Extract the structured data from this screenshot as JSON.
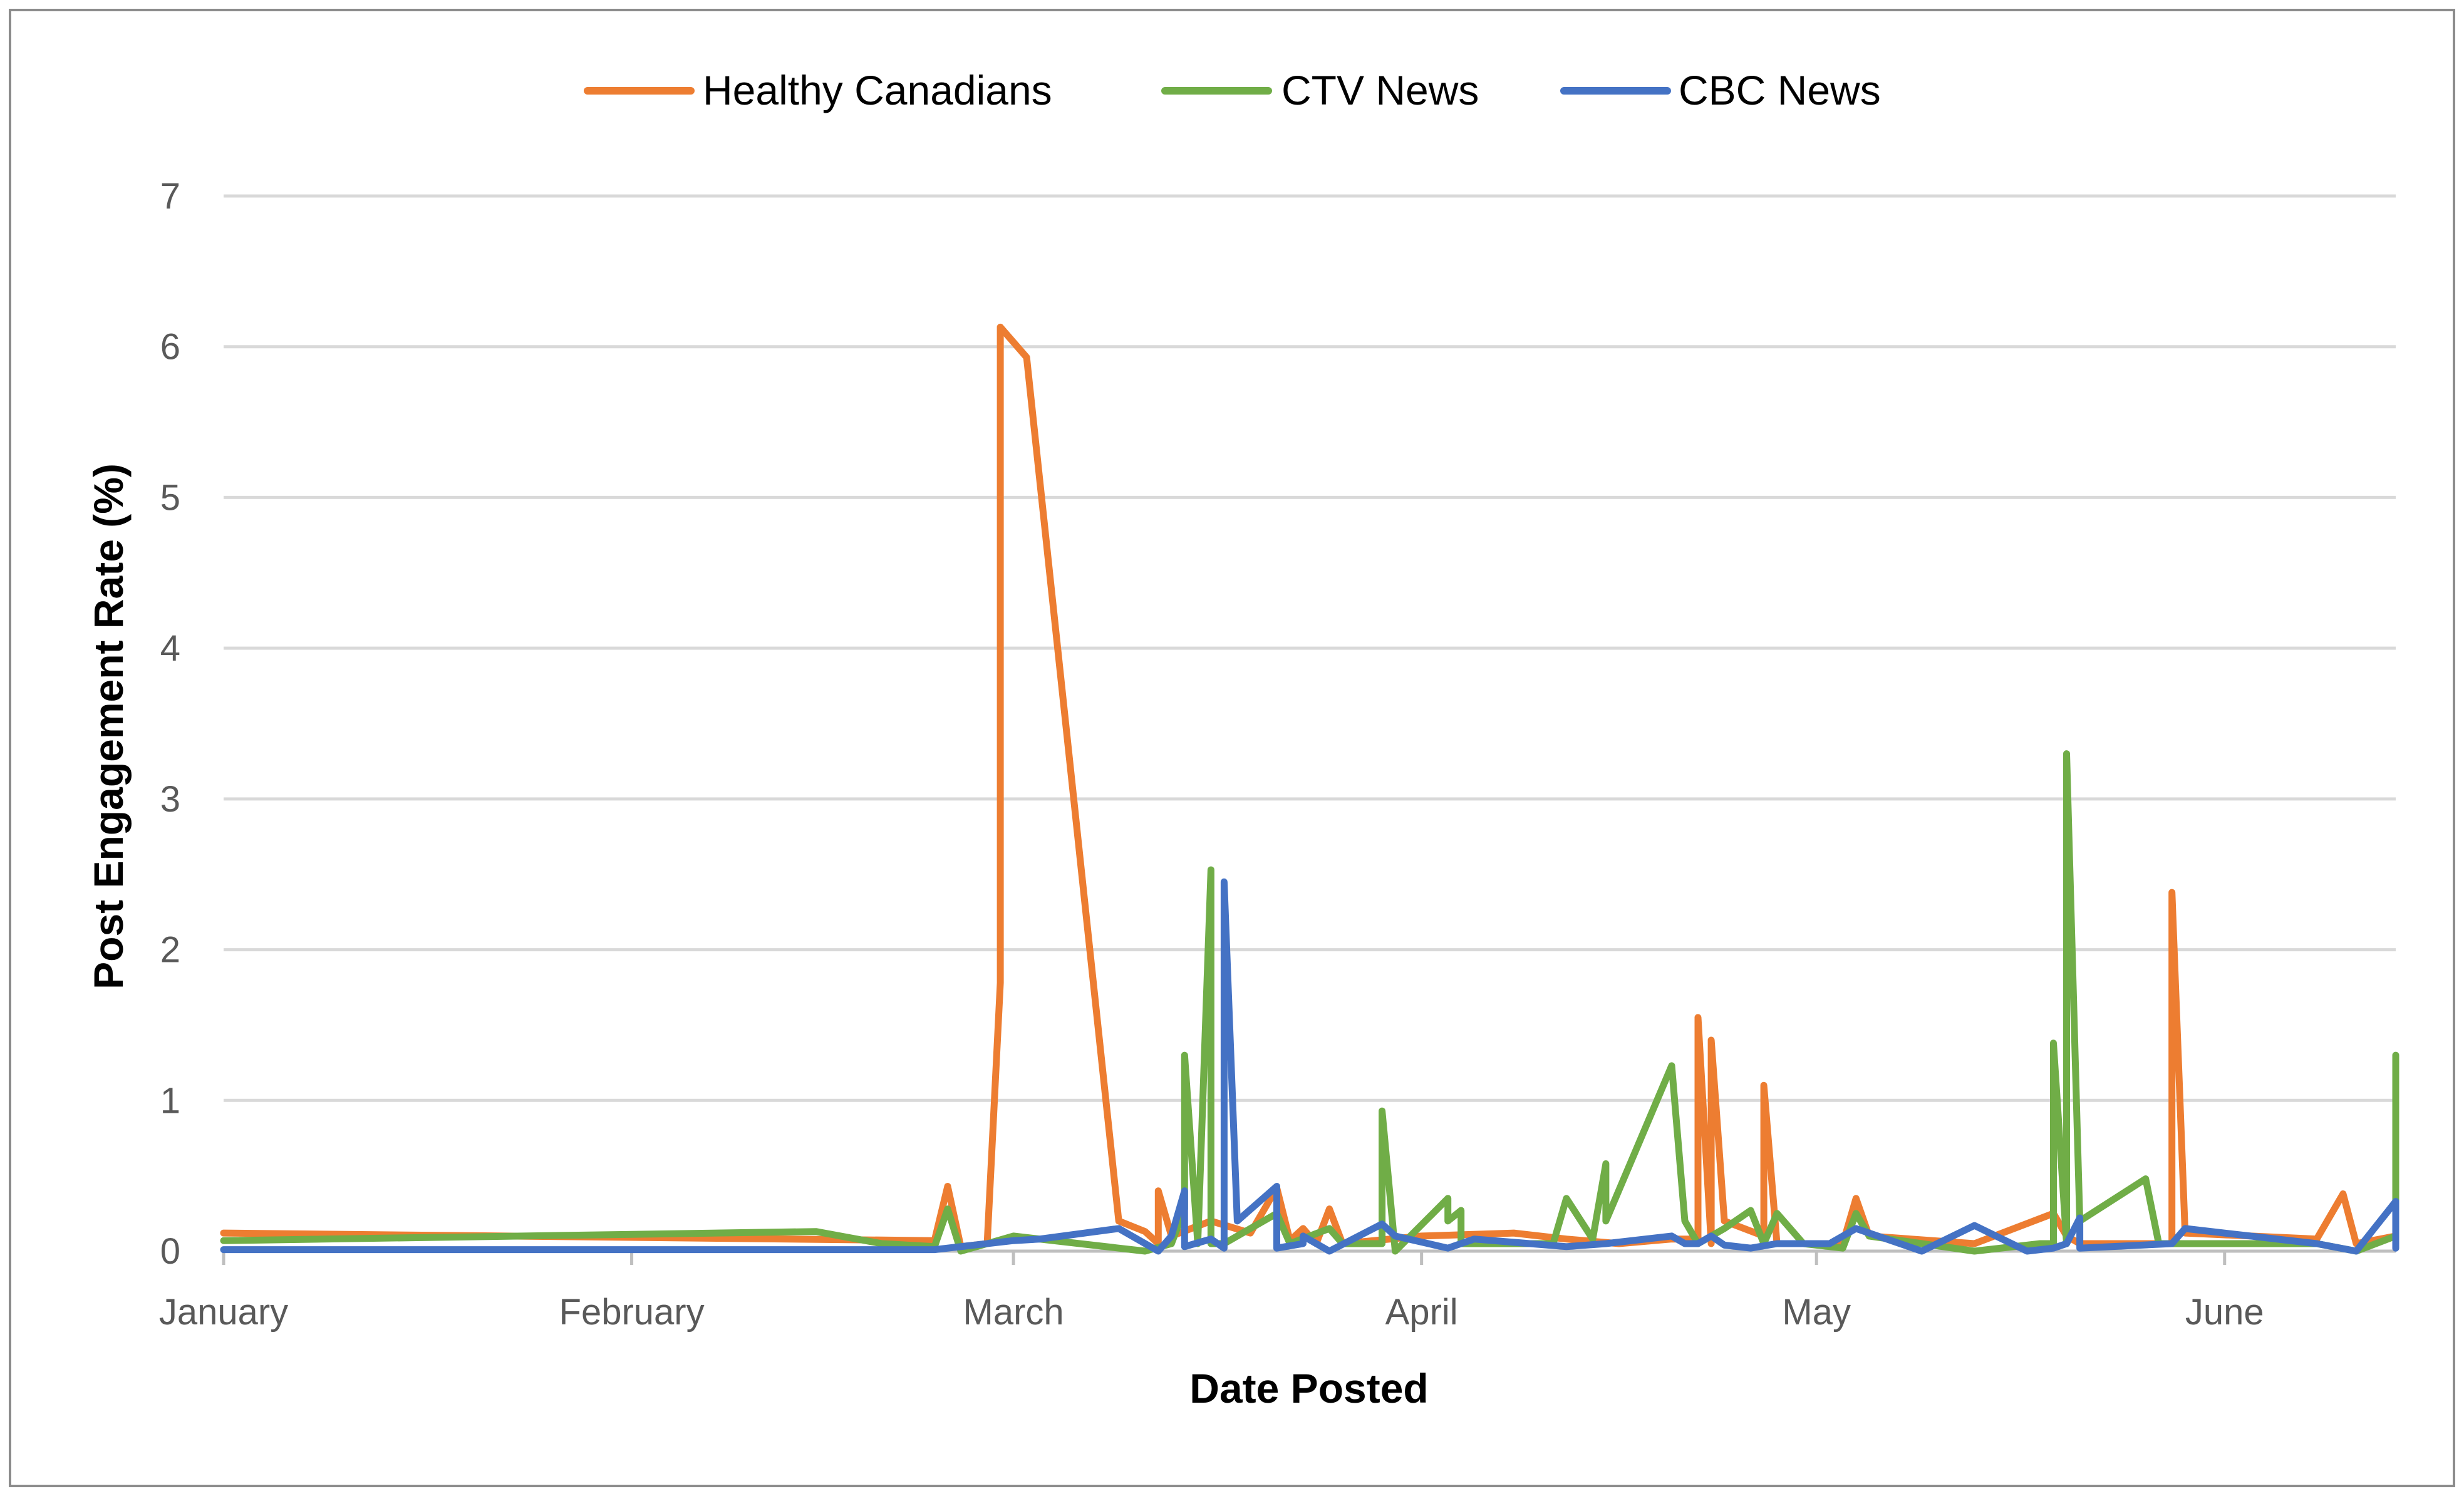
{
  "chart_data": {
    "type": "line",
    "title": "",
    "xlabel": "Date Posted",
    "ylabel": "Post Engagement Rate (%)",
    "x_axis_type": "date",
    "x_tick_labels": [
      "January",
      "February",
      "March",
      "April",
      "May",
      "June"
    ],
    "x_tick_dates": [
      "2020-01-01",
      "2020-02-01",
      "2020-03-01",
      "2020-04-01",
      "2020-05-01",
      "2020-06-01"
    ],
    "xlim": [
      "2020-01-01",
      "2020-06-14"
    ],
    "ylim": [
      0,
      7
    ],
    "y_ticks": [
      0,
      1,
      2,
      3,
      4,
      5,
      6,
      7
    ],
    "grid": "horizontal",
    "legend_position": "top-center",
    "series": [
      {
        "name": "Healthy Canadians",
        "color": "#ED7D31",
        "points": [
          [
            "2020-01-01",
            0.12
          ],
          [
            "2020-02-24",
            0.07
          ],
          [
            "2020-02-25",
            0.43
          ],
          [
            "2020-02-26",
            0.03
          ],
          [
            "2020-02-28",
            0.05
          ],
          [
            "2020-02-29",
            1.78
          ],
          [
            "2020-02-29",
            6.13
          ],
          [
            "2020-03-02",
            5.93
          ],
          [
            "2020-03-09",
            0.2
          ],
          [
            "2020-03-11",
            0.13
          ],
          [
            "2020-03-12",
            0.05
          ],
          [
            "2020-03-12",
            0.4
          ],
          [
            "2020-03-13",
            0.1
          ],
          [
            "2020-03-16",
            0.2
          ],
          [
            "2020-03-19",
            0.12
          ],
          [
            "2020-03-21",
            0.42
          ],
          [
            "2020-03-22",
            0.07
          ],
          [
            "2020-03-23",
            0.15
          ],
          [
            "2020-03-24",
            0.05
          ],
          [
            "2020-03-25",
            0.28
          ],
          [
            "2020-03-26",
            0.05
          ],
          [
            "2020-04-01",
            0.1
          ],
          [
            "2020-04-08",
            0.12
          ],
          [
            "2020-04-12",
            0.08
          ],
          [
            "2020-04-16",
            0.05
          ],
          [
            "2020-04-20",
            0.08
          ],
          [
            "2020-04-22",
            0.08
          ],
          [
            "2020-04-22",
            1.55
          ],
          [
            "2020-04-23",
            0.05
          ],
          [
            "2020-04-23",
            1.4
          ],
          [
            "2020-04-24",
            0.2
          ],
          [
            "2020-04-27",
            0.1
          ],
          [
            "2020-04-27",
            1.1
          ],
          [
            "2020-04-28",
            0.05
          ],
          [
            "2020-05-03",
            0.05
          ],
          [
            "2020-05-04",
            0.35
          ],
          [
            "2020-05-05",
            0.1
          ],
          [
            "2020-05-13",
            0.05
          ],
          [
            "2020-05-19",
            0.25
          ],
          [
            "2020-05-20",
            0.1
          ],
          [
            "2020-05-21",
            0.05
          ],
          [
            "2020-05-28",
            0.05
          ],
          [
            "2020-05-28",
            2.38
          ],
          [
            "2020-05-29",
            0.12
          ],
          [
            "2020-06-08",
            0.08
          ],
          [
            "2020-06-10",
            0.38
          ],
          [
            "2020-06-11",
            0.05
          ],
          [
            "2020-06-14",
            0.1
          ]
        ]
      },
      {
        "name": "CTV News",
        "color": "#70AD47",
        "points": [
          [
            "2020-01-01",
            0.07
          ],
          [
            "2020-02-15",
            0.13
          ],
          [
            "2020-02-20",
            0.05
          ],
          [
            "2020-02-24",
            0.03
          ],
          [
            "2020-02-25",
            0.28
          ],
          [
            "2020-02-26",
            0.0
          ],
          [
            "2020-02-28",
            0.05
          ],
          [
            "2020-03-01",
            0.1
          ],
          [
            "2020-03-11",
            0.0
          ],
          [
            "2020-03-13",
            0.05
          ],
          [
            "2020-03-14",
            0.28
          ],
          [
            "2020-03-14",
            1.3
          ],
          [
            "2020-03-15",
            0.05
          ],
          [
            "2020-03-16",
            2.53
          ],
          [
            "2020-03-16",
            0.05
          ],
          [
            "2020-03-17",
            0.05
          ],
          [
            "2020-03-19",
            0.15
          ],
          [
            "2020-03-21",
            0.25
          ],
          [
            "2020-03-22",
            0.05
          ],
          [
            "2020-03-25",
            0.15
          ],
          [
            "2020-03-26",
            0.05
          ],
          [
            "2020-03-29",
            0.05
          ],
          [
            "2020-03-29",
            0.93
          ],
          [
            "2020-03-30",
            0.0
          ],
          [
            "2020-04-03",
            0.35
          ],
          [
            "2020-04-03",
            0.2
          ],
          [
            "2020-04-04",
            0.27
          ],
          [
            "2020-04-04",
            0.05
          ],
          [
            "2020-04-11",
            0.05
          ],
          [
            "2020-04-12",
            0.35
          ],
          [
            "2020-04-14",
            0.08
          ],
          [
            "2020-04-15",
            0.58
          ],
          [
            "2020-04-15",
            0.2
          ],
          [
            "2020-04-20",
            1.23
          ],
          [
            "2020-04-21",
            0.2
          ],
          [
            "2020-04-22",
            0.05
          ],
          [
            "2020-04-24",
            0.15
          ],
          [
            "2020-04-26",
            0.27
          ],
          [
            "2020-04-27",
            0.05
          ],
          [
            "2020-04-28",
            0.25
          ],
          [
            "2020-04-29",
            0.15
          ],
          [
            "2020-04-30",
            0.05
          ],
          [
            "2020-05-03",
            0.02
          ],
          [
            "2020-05-04",
            0.25
          ],
          [
            "2020-05-05",
            0.1
          ],
          [
            "2020-05-13",
            0.0
          ],
          [
            "2020-05-18",
            0.05
          ],
          [
            "2020-05-19",
            0.05
          ],
          [
            "2020-05-19",
            1.38
          ],
          [
            "2020-05-20",
            0.05
          ],
          [
            "2020-05-20",
            3.3
          ],
          [
            "2020-05-21",
            0.2
          ],
          [
            "2020-05-26",
            0.48
          ],
          [
            "2020-05-27",
            0.05
          ],
          [
            "2020-06-08",
            0.05
          ],
          [
            "2020-06-11",
            0.0
          ],
          [
            "2020-06-14",
            0.1
          ],
          [
            "2020-06-14",
            1.3
          ]
        ]
      },
      {
        "name": "CBC News",
        "color": "#4472C4",
        "points": [
          [
            "2020-01-01",
            0.01
          ],
          [
            "2020-02-24",
            0.01
          ],
          [
            "2020-03-01",
            0.07
          ],
          [
            "2020-03-03",
            0.08
          ],
          [
            "2020-03-09",
            0.15
          ],
          [
            "2020-03-11",
            0.05
          ],
          [
            "2020-03-12",
            0.0
          ],
          [
            "2020-03-13",
            0.1
          ],
          [
            "2020-03-14",
            0.4
          ],
          [
            "2020-03-14",
            0.03
          ],
          [
            "2020-03-16",
            0.08
          ],
          [
            "2020-03-17",
            0.02
          ],
          [
            "2020-03-17",
            2.45
          ],
          [
            "2020-03-18",
            0.2
          ],
          [
            "2020-03-21",
            0.43
          ],
          [
            "2020-03-21",
            0.02
          ],
          [
            "2020-03-23",
            0.05
          ],
          [
            "2020-03-23",
            0.1
          ],
          [
            "2020-03-24",
            0.05
          ],
          [
            "2020-03-25",
            0.0
          ],
          [
            "2020-03-29",
            0.18
          ],
          [
            "2020-03-30",
            0.1
          ],
          [
            "2020-04-03",
            0.02
          ],
          [
            "2020-04-05",
            0.08
          ],
          [
            "2020-04-12",
            0.03
          ],
          [
            "2020-04-15",
            0.05
          ],
          [
            "2020-04-20",
            0.1
          ],
          [
            "2020-04-21",
            0.05
          ],
          [
            "2020-04-22",
            0.05
          ],
          [
            "2020-04-23",
            0.1
          ],
          [
            "2020-04-24",
            0.04
          ],
          [
            "2020-04-26",
            0.02
          ],
          [
            "2020-04-28",
            0.05
          ],
          [
            "2020-05-02",
            0.05
          ],
          [
            "2020-05-04",
            0.15
          ],
          [
            "2020-05-09",
            0.0
          ],
          [
            "2020-05-13",
            0.17
          ],
          [
            "2020-05-17",
            0.0
          ],
          [
            "2020-05-19",
            0.02
          ],
          [
            "2020-05-20",
            0.05
          ],
          [
            "2020-05-21",
            0.22
          ],
          [
            "2020-05-21",
            0.02
          ],
          [
            "2020-05-28",
            0.05
          ],
          [
            "2020-05-29",
            0.15
          ],
          [
            "2020-06-08",
            0.05
          ],
          [
            "2020-06-11",
            0.0
          ],
          [
            "2020-06-14",
            0.33
          ],
          [
            "2020-06-14",
            0.02
          ]
        ]
      }
    ]
  }
}
